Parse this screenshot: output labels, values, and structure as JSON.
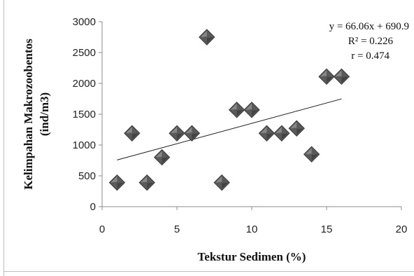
{
  "chart_data": {
    "type": "scatter",
    "title": "",
    "xlabel": "Tekstur Sedimen (%)",
    "ylabel_lines": [
      "Kelimpahan Makrozoobentos",
      "(ind/m3)"
    ],
    "xlim": [
      0,
      20
    ],
    "ylim": [
      0,
      3000
    ],
    "x_ticks": [
      "0",
      "5",
      "10",
      "15",
      "20"
    ],
    "y_ticks": [
      "0",
      "500",
      "1000",
      "1500",
      "2000",
      "2500",
      "3000"
    ],
    "grid": false,
    "legend": "none",
    "marker": "diamond",
    "marker_color": "#5a5a5a",
    "points": [
      {
        "x": 1,
        "y": 390
      },
      {
        "x": 2,
        "y": 1190
      },
      {
        "x": 3,
        "y": 390
      },
      {
        "x": 4,
        "y": 800
      },
      {
        "x": 5,
        "y": 1190
      },
      {
        "x": 6,
        "y": 1190
      },
      {
        "x": 7,
        "y": 2750
      },
      {
        "x": 8,
        "y": 390
      },
      {
        "x": 9,
        "y": 1570
      },
      {
        "x": 10,
        "y": 1570
      },
      {
        "x": 11,
        "y": 1190
      },
      {
        "x": 12,
        "y": 1190
      },
      {
        "x": 13,
        "y": 1270
      },
      {
        "x": 14,
        "y": 850
      },
      {
        "x": 15,
        "y": 2110
      },
      {
        "x": 16,
        "y": 2110
      }
    ],
    "trendline": {
      "slope": 66.06,
      "intercept": 690.9,
      "x_from": 1,
      "x_to": 16
    },
    "annotations": [
      "y = 66.06x + 690.9",
      "R² = 0.226",
      "r = 0.474"
    ]
  }
}
